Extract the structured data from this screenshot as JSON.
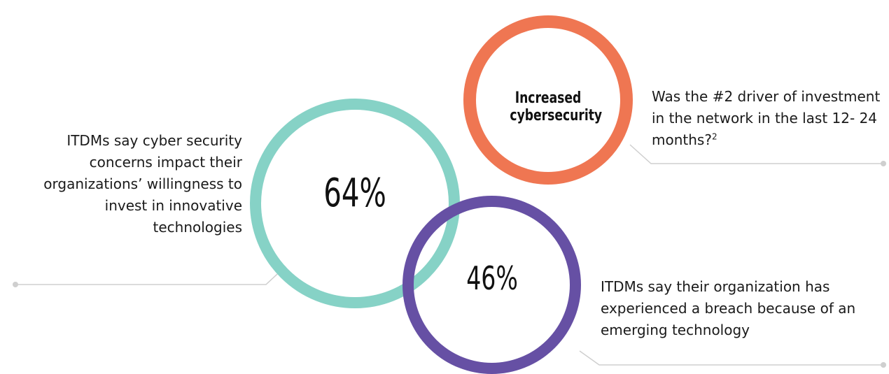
{
  "stats": [
    {
      "value": "64%",
      "description": "ITDMs say cyber security concerns impact their organizations’ willingness to invest in innovative technologies",
      "color": "#86d2c6"
    },
    {
      "value": "46%",
      "description": "ITDMs say their organization has experienced a breach because of an emerging technology",
      "color": "#6650a4"
    }
  ],
  "highlight": {
    "label_line1": "Increased",
    "label_line2": "cybersecurity",
    "description": "Was the #2 driver of investment in the network in the last 12- 24 months?",
    "footnote": "2",
    "color": "#ef7652"
  },
  "connector_color": "#cfcfcf"
}
